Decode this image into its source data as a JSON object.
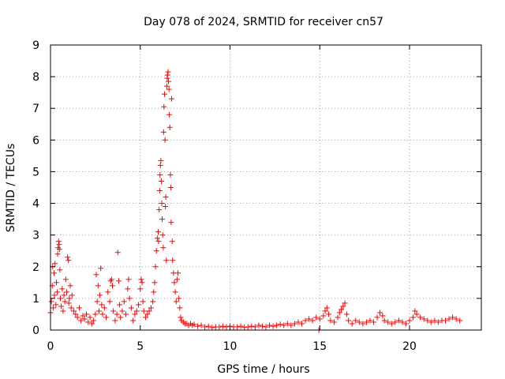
{
  "chart_data": {
    "type": "scatter",
    "title": "Day 078 of 2024, SRMTID for receiver cn57",
    "xlabel": "GPS time / hours",
    "ylabel": "SRMTID / TECUs",
    "xlim": [
      0,
      24
    ],
    "ylim": [
      0,
      9
    ],
    "xticks": [
      "0",
      "5",
      "10",
      "15",
      "20"
    ],
    "yticks": [
      "0",
      "1",
      "2",
      "3",
      "4",
      "5",
      "6",
      "7",
      "8",
      "9"
    ],
    "grid": true,
    "marker": "+",
    "marker_color": "#ff0000",
    "series": [
      {
        "name": "SRMTID",
        "points": [
          [
            0.0,
            0.55
          ],
          [
            0.05,
            0.9
          ],
          [
            0.1,
            1.4
          ],
          [
            0.12,
            2.0
          ],
          [
            0.15,
            0.7
          ],
          [
            0.2,
            1.8
          ],
          [
            0.22,
            1.1
          ],
          [
            0.25,
            2.1
          ],
          [
            0.3,
            0.8
          ],
          [
            0.33,
            1.5
          ],
          [
            0.38,
            1.2
          ],
          [
            0.4,
            2.4
          ],
          [
            0.42,
            2.6
          ],
          [
            0.45,
            2.8
          ],
          [
            0.48,
            2.7
          ],
          [
            0.5,
            2.55
          ],
          [
            0.52,
            1.9
          ],
          [
            0.55,
            1.0
          ],
          [
            0.6,
            0.75
          ],
          [
            0.65,
            1.3
          ],
          [
            0.7,
            0.6
          ],
          [
            0.75,
            1.1
          ],
          [
            0.8,
            0.9
          ],
          [
            0.85,
            1.6
          ],
          [
            0.9,
            1.2
          ],
          [
            0.95,
            2.3
          ],
          [
            1.0,
            2.2
          ],
          [
            1.02,
            0.85
          ],
          [
            1.05,
            1.0
          ],
          [
            1.1,
            1.4
          ],
          [
            1.15,
            0.7
          ],
          [
            1.2,
            1.1
          ],
          [
            1.3,
            0.6
          ],
          [
            1.4,
            0.5
          ],
          [
            1.5,
            0.4
          ],
          [
            1.6,
            0.7
          ],
          [
            1.7,
            0.3
          ],
          [
            1.8,
            0.45
          ],
          [
            1.9,
            0.35
          ],
          [
            2.0,
            0.5
          ],
          [
            2.1,
            0.25
          ],
          [
            2.2,
            0.4
          ],
          [
            2.3,
            0.2
          ],
          [
            2.4,
            0.3
          ],
          [
            2.5,
            0.5
          ],
          [
            2.55,
            1.75
          ],
          [
            2.6,
            0.9
          ],
          [
            2.65,
            1.4
          ],
          [
            2.7,
            0.6
          ],
          [
            2.75,
            1.1
          ],
          [
            2.8,
            1.95
          ],
          [
            2.85,
            0.8
          ],
          [
            2.9,
            0.5
          ],
          [
            3.0,
            0.7
          ],
          [
            3.1,
            0.4
          ],
          [
            3.2,
            1.2
          ],
          [
            3.3,
            0.9
          ],
          [
            3.35,
            1.55
          ],
          [
            3.4,
            1.6
          ],
          [
            3.45,
            1.4
          ],
          [
            3.5,
            0.6
          ],
          [
            3.6,
            0.3
          ],
          [
            3.7,
            0.5
          ],
          [
            3.75,
            2.45
          ],
          [
            3.8,
            1.55
          ],
          [
            3.85,
            0.8
          ],
          [
            3.9,
            0.4
          ],
          [
            4.0,
            0.6
          ],
          [
            4.1,
            0.9
          ],
          [
            4.2,
            0.5
          ],
          [
            4.3,
            1.3
          ],
          [
            4.35,
            1.6
          ],
          [
            4.4,
            1.0
          ],
          [
            4.5,
            0.7
          ],
          [
            4.6,
            0.3
          ],
          [
            4.7,
            0.5
          ],
          [
            4.8,
            0.6
          ],
          [
            4.9,
            0.8
          ],
          [
            5.0,
            1.3
          ],
          [
            5.05,
            1.6
          ],
          [
            5.1,
            1.5
          ],
          [
            5.15,
            0.9
          ],
          [
            5.2,
            0.6
          ],
          [
            5.3,
            0.4
          ],
          [
            5.4,
            0.5
          ],
          [
            5.5,
            0.6
          ],
          [
            5.6,
            0.7
          ],
          [
            5.7,
            0.9
          ],
          [
            5.75,
            1.2
          ],
          [
            5.8,
            1.5
          ],
          [
            5.85,
            2.0
          ],
          [
            5.9,
            2.5
          ],
          [
            5.95,
            2.9
          ],
          [
            6.0,
            3.1
          ],
          [
            6.02,
            2.8
          ],
          [
            6.05,
            3.8
          ],
          [
            6.08,
            4.4
          ],
          [
            6.1,
            4.9
          ],
          [
            6.12,
            5.2
          ],
          [
            6.15,
            5.35
          ],
          [
            6.18,
            4.7
          ],
          [
            6.2,
            4.0
          ],
          [
            6.22,
            3.5
          ],
          [
            6.25,
            3.0
          ],
          [
            6.28,
            2.6
          ],
          [
            6.3,
            6.25
          ],
          [
            6.32,
            7.05
          ],
          [
            6.35,
            7.45
          ],
          [
            6.38,
            6.0
          ],
          [
            6.4,
            3.9
          ],
          [
            6.42,
            4.2
          ],
          [
            6.45,
            2.2
          ],
          [
            6.48,
            7.7
          ],
          [
            6.5,
            7.95
          ],
          [
            6.52,
            8.05
          ],
          [
            6.55,
            8.15
          ],
          [
            6.57,
            7.85
          ],
          [
            6.6,
            7.6
          ],
          [
            6.62,
            6.8
          ],
          [
            6.65,
            6.4
          ],
          [
            6.68,
            4.9
          ],
          [
            6.7,
            4.5
          ],
          [
            6.72,
            3.4
          ],
          [
            6.75,
            7.3
          ],
          [
            6.78,
            2.8
          ],
          [
            6.8,
            2.2
          ],
          [
            6.85,
            1.8
          ],
          [
            6.9,
            1.5
          ],
          [
            6.95,
            1.2
          ],
          [
            7.0,
            0.9
          ],
          [
            7.05,
            1.6
          ],
          [
            7.1,
            1.8
          ],
          [
            7.15,
            1.0
          ],
          [
            7.2,
            0.7
          ],
          [
            7.25,
            0.4
          ],
          [
            7.3,
            0.3
          ],
          [
            7.4,
            0.25
          ],
          [
            7.5,
            0.2
          ],
          [
            7.6,
            0.2
          ],
          [
            7.7,
            0.15
          ],
          [
            7.8,
            0.2
          ],
          [
            7.9,
            0.15
          ],
          [
            8.0,
            0.18
          ],
          [
            8.2,
            0.12
          ],
          [
            8.4,
            0.15
          ],
          [
            8.6,
            0.1
          ],
          [
            8.8,
            0.12
          ],
          [
            9.0,
            0.08
          ],
          [
            9.2,
            0.1
          ],
          [
            9.4,
            0.1
          ],
          [
            9.6,
            0.12
          ],
          [
            9.8,
            0.1
          ],
          [
            10.0,
            0.12
          ],
          [
            10.2,
            0.1
          ],
          [
            10.4,
            0.1
          ],
          [
            10.6,
            0.12
          ],
          [
            10.8,
            0.09
          ],
          [
            11.0,
            0.1
          ],
          [
            11.2,
            0.12
          ],
          [
            11.4,
            0.1
          ],
          [
            11.6,
            0.15
          ],
          [
            11.8,
            0.12
          ],
          [
            12.0,
            0.1
          ],
          [
            12.2,
            0.15
          ],
          [
            12.4,
            0.12
          ],
          [
            12.6,
            0.15
          ],
          [
            12.8,
            0.18
          ],
          [
            13.0,
            0.15
          ],
          [
            13.2,
            0.2
          ],
          [
            13.4,
            0.15
          ],
          [
            13.6,
            0.2
          ],
          [
            13.8,
            0.25
          ],
          [
            14.0,
            0.2
          ],
          [
            14.2,
            0.3
          ],
          [
            14.4,
            0.35
          ],
          [
            14.6,
            0.3
          ],
          [
            14.8,
            0.4
          ],
          [
            14.95,
            0.0
          ],
          [
            15.0,
            0.35
          ],
          [
            15.2,
            0.45
          ],
          [
            15.3,
            0.6
          ],
          [
            15.4,
            0.7
          ],
          [
            15.5,
            0.5
          ],
          [
            15.6,
            0.3
          ],
          [
            15.8,
            0.25
          ],
          [
            16.0,
            0.4
          ],
          [
            16.1,
            0.55
          ],
          [
            16.2,
            0.65
          ],
          [
            16.3,
            0.75
          ],
          [
            16.4,
            0.85
          ],
          [
            16.5,
            0.5
          ],
          [
            16.6,
            0.3
          ],
          [
            16.8,
            0.2
          ],
          [
            17.0,
            0.3
          ],
          [
            17.2,
            0.25
          ],
          [
            17.4,
            0.2
          ],
          [
            17.6,
            0.25
          ],
          [
            17.8,
            0.3
          ],
          [
            18.0,
            0.25
          ],
          [
            18.2,
            0.4
          ],
          [
            18.35,
            0.55
          ],
          [
            18.5,
            0.45
          ],
          [
            18.6,
            0.3
          ],
          [
            18.8,
            0.25
          ],
          [
            19.0,
            0.2
          ],
          [
            19.2,
            0.25
          ],
          [
            19.4,
            0.3
          ],
          [
            19.6,
            0.25
          ],
          [
            19.8,
            0.2
          ],
          [
            20.0,
            0.3
          ],
          [
            20.2,
            0.4
          ],
          [
            20.3,
            0.6
          ],
          [
            20.4,
            0.5
          ],
          [
            20.6,
            0.4
          ],
          [
            20.8,
            0.35
          ],
          [
            21.0,
            0.3
          ],
          [
            21.2,
            0.25
          ],
          [
            21.4,
            0.3
          ],
          [
            21.6,
            0.25
          ],
          [
            21.8,
            0.3
          ],
          [
            22.0,
            0.3
          ],
          [
            22.2,
            0.35
          ],
          [
            22.4,
            0.4
          ],
          [
            22.6,
            0.35
          ],
          [
            22.8,
            0.3
          ]
        ]
      }
    ]
  }
}
